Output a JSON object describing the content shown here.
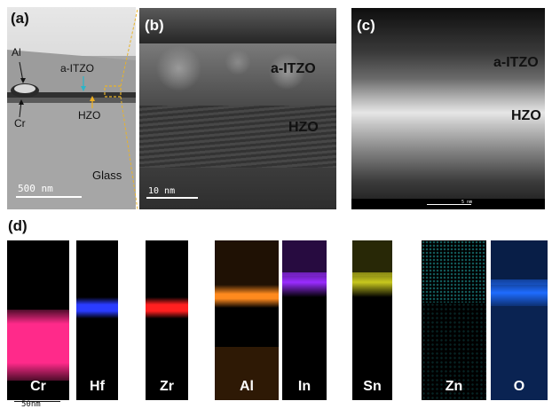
{
  "panels": {
    "a": {
      "label": "(a)",
      "layer_labels": {
        "al": "Al",
        "aitzo": "a-ITZO",
        "cr": "Cr",
        "hzo": "HZO",
        "glass": "Glass"
      },
      "scalebar": "500 nm"
    },
    "b": {
      "label": "(b)",
      "layer_labels": {
        "aitzo": "a-ITZO",
        "hzo": "HZO"
      },
      "scalebar": "10 nm"
    },
    "c": {
      "label": "(c)",
      "layer_labels": {
        "aitzo": "a-ITZO",
        "hzo": "HZO"
      },
      "scalebar": "5 nm"
    },
    "d": {
      "label": "(d)",
      "scalebar": "50nm",
      "maps": [
        {
          "element": "Cr",
          "color": "#ff2a8a"
        },
        {
          "element": "Hf",
          "color": "#2a3cff"
        },
        {
          "element": "Zr",
          "color": "#ff2020"
        },
        {
          "element": "Al",
          "color": "#ff8a1e"
        },
        {
          "element": "In",
          "color": "#9a2cff"
        },
        {
          "element": "Sn",
          "color": "#c8c81e"
        },
        {
          "element": "Zn",
          "color": "#28c8c8"
        },
        {
          "element": "O",
          "color": "#1e6cff"
        }
      ]
    }
  },
  "arrow_colors": {
    "aitzo": "#2bb5c8",
    "hzo": "#f0b020",
    "zoom_box": "#e8b32a"
  }
}
